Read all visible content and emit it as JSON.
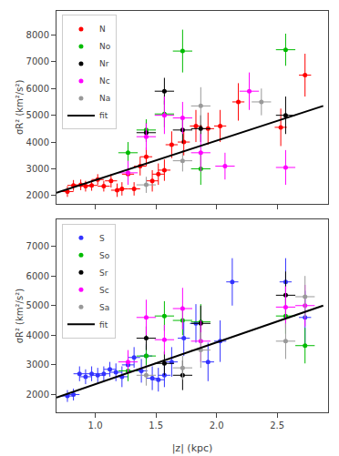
{
  "chart_data": [
    {
      "type": "scatter",
      "ylabel": "σR² (km²/s²)",
      "xlim": [
        0.68,
        2.92
      ],
      "xticks": [
        {
          "value": 1.0,
          "label": "1.0"
        },
        1.5,
        {
          "value": 2.0,
          "label": "2.0"
        },
        2.5
      ],
      "ylim": [
        1700,
        8900
      ],
      "yticks": [
        2000,
        3000,
        4000,
        5000,
        6000,
        7000,
        8000
      ],
      "grid": false,
      "legend": "upper left",
      "tick_labels": "y",
      "series": [
        {
          "name": "N",
          "color": "#ff0000",
          "marker": "circle",
          "x": [
            0.77,
            0.82,
            0.88,
            0.92,
            0.97,
            1.02,
            1.07,
            1.13,
            1.18,
            1.22,
            1.27,
            1.32,
            1.37,
            1.42,
            1.47,
            1.52,
            1.57,
            1.63,
            1.73,
            1.83,
            1.93,
            2.03,
            2.18,
            2.53,
            2.73
          ],
          "values": [
            2150,
            2380,
            2400,
            2350,
            2380,
            2600,
            2350,
            2550,
            2200,
            2250,
            2800,
            2250,
            3100,
            3450,
            2550,
            2800,
            2950,
            3900,
            4000,
            4600,
            4500,
            4600,
            5500,
            4550,
            6500
          ],
          "xerr": [
            0.05,
            0.05,
            0.05,
            0.05,
            0.05,
            0.05,
            0.05,
            0.05,
            0.05,
            0.05,
            0.05,
            0.05,
            0.05,
            0.05,
            0.05,
            0.05,
            0.05,
            0.05,
            0.05,
            0.05,
            0.05,
            0.05,
            0.05,
            0.05,
            0.05
          ],
          "yerr": [
            200,
            200,
            200,
            200,
            200,
            200,
            200,
            250,
            250,
            250,
            250,
            250,
            350,
            350,
            400,
            400,
            400,
            500,
            500,
            600,
            600,
            600,
            700,
            700,
            800
          ]
        },
        {
          "name": "No",
          "color": "#00bb00",
          "marker": "circle",
          "x": [
            1.27,
            1.42,
            1.57,
            1.72,
            1.87,
            2.57
          ],
          "values": [
            3600,
            4450,
            5050,
            7400,
            3000,
            7450
          ],
          "xerr": [
            0.08,
            0.08,
            0.08,
            0.08,
            0.08,
            0.08
          ],
          "yerr": [
            400,
            400,
            500,
            800,
            600,
            600
          ]
        },
        {
          "name": "Nr",
          "color": "#000000",
          "marker": "circle",
          "x": [
            1.42,
            1.57,
            1.72,
            1.87,
            2.57
          ],
          "values": [
            4350,
            5900,
            4450,
            4500,
            5000
          ],
          "xerr": [
            0.08,
            0.08,
            0.08,
            0.08,
            0.08
          ],
          "yerr": [
            350,
            500,
            500,
            500,
            700
          ]
        },
        {
          "name": "Nc",
          "color": "#ff00ff",
          "marker": "circle",
          "x": [
            1.27,
            1.42,
            1.57,
            1.72,
            1.87,
            2.07,
            2.27,
            2.57
          ],
          "values": [
            2850,
            4200,
            5000,
            4900,
            3600,
            3100,
            5900,
            3050
          ],
          "xerr": [
            0.08,
            0.08,
            0.08,
            0.08,
            0.08,
            0.08,
            0.08,
            0.08
          ],
          "yerr": [
            450,
            500,
            700,
            600,
            700,
            500,
            700,
            650
          ]
        },
        {
          "name": "Na",
          "color": "#999999",
          "marker": "circle",
          "x": [
            1.42,
            1.72,
            1.87,
            2.37
          ],
          "values": [
            2400,
            3300,
            5350,
            5500
          ],
          "xerr": [
            0.08,
            0.08,
            0.08,
            0.08
          ],
          "yerr": [
            300,
            400,
            700,
            500
          ]
        },
        {
          "name": "fit",
          "type": "line",
          "color": "#000000",
          "line_style": "solid",
          "x": [
            0.68,
            2.88
          ],
          "values": [
            2100,
            5350
          ]
        }
      ]
    },
    {
      "type": "scatter",
      "xlabel": "|z| (kpc)",
      "ylabel": "σR² (km²/s²)",
      "xlim": [
        0.68,
        2.92
      ],
      "xticks": [
        {
          "value": 1.0,
          "label": "1.0"
        },
        1.5,
        {
          "value": 2.0,
          "label": "2.0"
        },
        2.5
      ],
      "ylim": [
        1400,
        7900
      ],
      "yticks": [
        2000,
        3000,
        4000,
        5000,
        6000,
        7000
      ],
      "grid": false,
      "legend": "upper left",
      "series": [
        {
          "name": "S",
          "color": "#3333ff",
          "marker": "circle",
          "x": [
            0.77,
            0.82,
            0.87,
            0.92,
            0.97,
            1.02,
            1.07,
            1.12,
            1.17,
            1.22,
            1.27,
            1.32,
            1.38,
            1.42,
            1.47,
            1.52,
            1.57,
            1.63,
            1.73,
            1.83,
            1.93,
            2.03,
            2.13,
            2.57,
            2.73
          ],
          "values": [
            1950,
            2000,
            2700,
            2600,
            2700,
            2650,
            2700,
            2850,
            2750,
            2600,
            3000,
            3250,
            2800,
            3300,
            2550,
            2500,
            2650,
            3100,
            3900,
            4400,
            3100,
            3800,
            5800,
            5800,
            4600
          ],
          "xerr": [
            0.05,
            0.05,
            0.05,
            0.05,
            0.05,
            0.05,
            0.05,
            0.05,
            0.05,
            0.05,
            0.05,
            0.05,
            0.05,
            0.05,
            0.05,
            0.05,
            0.05,
            0.05,
            0.05,
            0.05,
            0.05,
            0.05,
            0.05,
            0.05,
            0.05
          ],
          "yerr": [
            200,
            200,
            250,
            250,
            250,
            250,
            250,
            250,
            300,
            350,
            350,
            350,
            400,
            400,
            400,
            400,
            400,
            500,
            600,
            650,
            650,
            700,
            800,
            800,
            900
          ]
        },
        {
          "name": "So",
          "color": "#00bb00",
          "marker": "circle",
          "x": [
            1.27,
            1.42,
            1.57,
            1.72,
            1.87,
            2.57,
            2.73
          ],
          "values": [
            2800,
            3300,
            4650,
            4500,
            4450,
            4650,
            3650
          ],
          "xerr": [
            0.08,
            0.08,
            0.08,
            0.08,
            0.08,
            0.08,
            0.08
          ],
          "yerr": [
            350,
            350,
            500,
            500,
            600,
            600,
            600
          ]
        },
        {
          "name": "Sr",
          "color": "#000000",
          "marker": "circle",
          "x": [
            1.42,
            1.57,
            1.72,
            1.87,
            2.57
          ],
          "values": [
            3900,
            3050,
            2650,
            4400,
            5350
          ],
          "xerr": [
            0.08,
            0.08,
            0.08,
            0.08,
            0.08
          ],
          "yerr": [
            400,
            400,
            500,
            600,
            800
          ]
        },
        {
          "name": "Sc",
          "color": "#ff00ff",
          "marker": "circle",
          "x": [
            1.27,
            1.42,
            1.57,
            1.72,
            1.87,
            2.57,
            2.73
          ],
          "values": [
            3100,
            4600,
            3850,
            4900,
            3800,
            4950,
            5000
          ],
          "xerr": [
            0.08,
            0.08,
            0.08,
            0.08,
            0.08,
            0.08,
            0.08
          ],
          "yerr": [
            400,
            600,
            500,
            700,
            700,
            700,
            700
          ]
        },
        {
          "name": "Sa",
          "color": "#999999",
          "marker": "circle",
          "x": [
            1.42,
            1.72,
            1.87,
            2.57,
            2.73
          ],
          "values": [
            2650,
            2900,
            3500,
            3800,
            5300
          ],
          "xerr": [
            0.08,
            0.08,
            0.08,
            0.08,
            0.08
          ],
          "yerr": [
            350,
            400,
            600,
            600,
            700
          ]
        },
        {
          "name": "fit",
          "type": "line",
          "color": "#000000",
          "line_style": "solid",
          "x": [
            0.68,
            2.88
          ],
          "values": [
            1900,
            5000
          ]
        }
      ]
    }
  ]
}
